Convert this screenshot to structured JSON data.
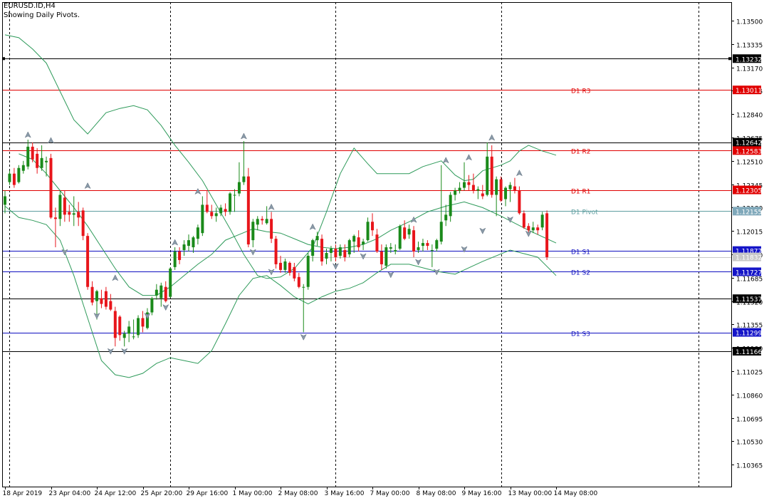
{
  "header": {
    "symbol_timeframe": "EURUSD.ID,H4",
    "indicator_note": "Showing Daily Pivots."
  },
  "colors": {
    "bull": "#1a8a1a",
    "bear": "#e8151b",
    "bollinger": "#2e9a5a",
    "resistance": "#e00000",
    "support": "#1010c0",
    "pivot": "#5f9ea0",
    "neutral_line": "#000000",
    "fractal": "#8a9aa8"
  },
  "chart_data": {
    "type": "candlestick",
    "symbol": "EURUSD.ID",
    "timeframe": "H4",
    "ylim": [
      1.1025,
      1.1365
    ],
    "y_ticks": [
      "1.13500",
      "1.13335",
      "1.13170",
      "1.13005",
      "1.12840",
      "1.12675",
      "1.12510",
      "1.12345",
      "1.12180",
      "1.12015",
      "1.11850",
      "1.11685",
      "1.11520",
      "1.11355",
      "1.11190",
      "1.11025",
      "1.10860",
      "1.10695",
      "1.10530",
      "1.10365"
    ],
    "x_labels": [
      {
        "bar": 0,
        "label": "18 Apr 2019"
      },
      {
        "bar": 10,
        "label": "23 Apr 04:00"
      },
      {
        "bar": 20,
        "label": "24 Apr 12:00"
      },
      {
        "bar": 30,
        "label": "25 Apr 20:00"
      },
      {
        "bar": 40,
        "label": "29 Apr 16:00"
      },
      {
        "bar": 50,
        "label": "1 May 00:00"
      },
      {
        "bar": 60,
        "label": "2 May 08:00"
      },
      {
        "bar": 70,
        "label": "3 May 16:00"
      },
      {
        "bar": 80,
        "label": "7 May 00:00"
      },
      {
        "bar": 90,
        "label": "8 May 08:00"
      },
      {
        "bar": 100,
        "label": "9 May 16:00"
      },
      {
        "bar": 110,
        "label": "13 May 00:00"
      },
      {
        "bar": 120,
        "label": "14 May 08:00"
      }
    ],
    "day_separators": [
      1,
      36,
      72,
      108,
      151
    ],
    "levels": [
      {
        "label": "",
        "value": 1.13232,
        "price": "1.13232",
        "kind": "neutral"
      },
      {
        "label": "D1 R3",
        "value": 1.13011,
        "price": "1.13011",
        "kind": "resistance"
      },
      {
        "label": "",
        "value": 1.12642,
        "price": "1.12642",
        "kind": "neutral"
      },
      {
        "label": "D1 R2",
        "value": 1.12583,
        "price": "1.12583",
        "kind": "resistance"
      },
      {
        "label": "D1 R1",
        "value": 1.12305,
        "price": "1.12305",
        "kind": "resistance"
      },
      {
        "label": "D1 Pivot",
        "value": 1.12155,
        "price": "1.12155",
        "kind": "pivot"
      },
      {
        "label": "D1 S1",
        "value": 1.11877,
        "price": "1.11877",
        "kind": "support"
      },
      {
        "label": "D1 S2",
        "value": 1.11727,
        "price": "1.11727",
        "kind": "support"
      },
      {
        "label": "",
        "value": 1.11537,
        "price": "1.11537",
        "kind": "neutral"
      },
      {
        "label": "D1 S3",
        "value": 1.11299,
        "price": "1.11299",
        "kind": "support"
      },
      {
        "label": "",
        "value": 1.11166,
        "price": "1.11166",
        "kind": "neutral"
      }
    ],
    "current_price": "1.11832",
    "current_value": 1.11832,
    "candles": [
      [
        1.122,
        1.123,
        1.1214,
        1.1226
      ],
      [
        1.1236,
        1.1244,
        1.1234,
        1.1242
      ],
      [
        1.1242,
        1.1246,
        1.1232,
        1.1234
      ],
      [
        1.1236,
        1.1248,
        1.1235,
        1.1246
      ],
      [
        1.1244,
        1.1251,
        1.1242,
        1.1248
      ],
      [
        1.1247,
        1.1266,
        1.1245,
        1.1261
      ],
      [
        1.1261,
        1.1264,
        1.125,
        1.1252
      ],
      [
        1.1256,
        1.126,
        1.1242,
        1.1246
      ],
      [
        1.1246,
        1.1262,
        1.1244,
        1.1253
      ],
      [
        1.125,
        1.1254,
        1.124,
        1.1251
      ],
      [
        1.1253,
        1.1256,
        1.121,
        1.1211
      ],
      [
        1.1211,
        1.1218,
        1.119,
        1.121
      ],
      [
        1.121,
        1.123,
        1.1205,
        1.1227
      ],
      [
        1.1225,
        1.123,
        1.1208,
        1.1213
      ],
      [
        1.1215,
        1.122,
        1.1208,
        1.1213
      ],
      [
        1.1213,
        1.1226,
        1.1205,
        1.1214
      ],
      [
        1.1215,
        1.1222,
        1.1205,
        1.1211
      ],
      [
        1.1216,
        1.1218,
        1.1195,
        1.1198
      ],
      [
        1.1198,
        1.12,
        1.116,
        1.1162
      ],
      [
        1.1162,
        1.1166,
        1.1149,
        1.1151
      ],
      [
        1.1152,
        1.116,
        1.1139,
        1.1159
      ],
      [
        1.1154,
        1.116,
        1.1147,
        1.115
      ],
      [
        1.1159,
        1.1162,
        1.1146,
        1.1148
      ],
      [
        1.1152,
        1.1157,
        1.1145,
        1.1146
      ],
      [
        1.1145,
        1.1148,
        1.112,
        1.1126
      ],
      [
        1.1141,
        1.1142,
        1.1124,
        1.1128
      ],
      [
        1.1126,
        1.1131,
        1.112,
        1.1129
      ],
      [
        1.1129,
        1.1138,
        1.1123,
        1.1134
      ],
      [
        1.1127,
        1.1139,
        1.1125,
        1.1127
      ],
      [
        1.1128,
        1.1142,
        1.1126,
        1.114
      ],
      [
        1.114,
        1.1145,
        1.113,
        1.1134
      ],
      [
        1.1133,
        1.1147,
        1.1132,
        1.1144
      ],
      [
        1.1144,
        1.1155,
        1.1142,
        1.1154
      ],
      [
        1.1156,
        1.1164,
        1.1153,
        1.116
      ],
      [
        1.1154,
        1.1165,
        1.1148,
        1.1163
      ],
      [
        1.1162,
        1.1166,
        1.1151,
        1.1152
      ],
      [
        1.1155,
        1.1176,
        1.1154,
        1.1175
      ],
      [
        1.1176,
        1.119,
        1.1174,
        1.1187
      ],
      [
        1.1187,
        1.119,
        1.1178,
        1.1181
      ],
      [
        1.1188,
        1.1195,
        1.1184,
        1.1192
      ],
      [
        1.1191,
        1.1199,
        1.1187,
        1.1195
      ],
      [
        1.119,
        1.1198,
        1.1186,
        1.1197
      ],
      [
        1.1196,
        1.1206,
        1.1192,
        1.1204
      ],
      [
        1.12,
        1.1226,
        1.1198,
        1.122
      ],
      [
        1.122,
        1.123,
        1.1214,
        1.1215
      ],
      [
        1.1215,
        1.122,
        1.121,
        1.1212
      ],
      [
        1.1212,
        1.1218,
        1.1208,
        1.1214
      ],
      [
        1.1214,
        1.122,
        1.1212,
        1.1218
      ],
      [
        1.1217,
        1.1221,
        1.1212,
        1.1215
      ],
      [
        1.1215,
        1.1229,
        1.1213,
        1.1228
      ],
      [
        1.1227,
        1.1231,
        1.1215,
        1.1227
      ],
      [
        1.1228,
        1.125,
        1.1226,
        1.1236
      ],
      [
        1.1236,
        1.1265,
        1.1234,
        1.124
      ],
      [
        1.124,
        1.1246,
        1.119,
        1.1192
      ],
      [
        1.1195,
        1.121,
        1.119,
        1.1208
      ],
      [
        1.1206,
        1.1212,
        1.1202,
        1.121
      ],
      [
        1.121,
        1.1212,
        1.1206,
        1.1209
      ],
      [
        1.1207,
        1.1219,
        1.1206,
        1.121
      ],
      [
        1.121,
        1.1215,
        1.1193,
        1.1196
      ],
      [
        1.1196,
        1.1198,
        1.1175,
        1.1178
      ],
      [
        1.1179,
        1.1184,
        1.1172,
        1.1174
      ],
      [
        1.1174,
        1.1182,
        1.1172,
        1.118
      ],
      [
        1.1179,
        1.118,
        1.117,
        1.1172
      ],
      [
        1.1176,
        1.1179,
        1.1166,
        1.1168
      ],
      [
        1.1169,
        1.1172,
        1.1161,
        1.1162
      ],
      [
        1.1162,
        1.1164,
        1.113,
        1.1162
      ],
      [
        1.1162,
        1.1186,
        1.116,
        1.1184
      ],
      [
        1.1184,
        1.1196,
        1.118,
        1.1195
      ],
      [
        1.1195,
        1.1201,
        1.1191,
        1.1198
      ],
      [
        1.1196,
        1.1199,
        1.1177,
        1.118
      ],
      [
        1.1182,
        1.1189,
        1.1178,
        1.1186
      ],
      [
        1.1186,
        1.1191,
        1.118,
        1.1189
      ],
      [
        1.1189,
        1.1192,
        1.118,
        1.1183
      ],
      [
        1.1184,
        1.1192,
        1.1182,
        1.119
      ],
      [
        1.1188,
        1.1192,
        1.118,
        1.1183
      ],
      [
        1.1185,
        1.1196,
        1.1183,
        1.1195
      ],
      [
        1.1194,
        1.1199,
        1.1186,
        1.1198
      ],
      [
        1.1197,
        1.1202,
        1.1187,
        1.119
      ],
      [
        1.1192,
        1.1196,
        1.1188,
        1.1194
      ],
      [
        1.1195,
        1.1211,
        1.1194,
        1.1208
      ],
      [
        1.1208,
        1.1214,
        1.1198,
        1.1202
      ],
      [
        1.1199,
        1.1203,
        1.1186,
        1.1187
      ],
      [
        1.1187,
        1.1192,
        1.1174,
        1.1178
      ],
      [
        1.1177,
        1.1192,
        1.1175,
        1.119
      ],
      [
        1.1189,
        1.1193,
        1.1186,
        1.119
      ],
      [
        1.1187,
        1.1192,
        1.1185,
        1.1188
      ],
      [
        1.1189,
        1.1206,
        1.1188,
        1.1205
      ],
      [
        1.1204,
        1.1209,
        1.1195,
        1.1196
      ],
      [
        1.1199,
        1.1206,
        1.1196,
        1.1203
      ],
      [
        1.1202,
        1.1205,
        1.1183,
        1.1187
      ],
      [
        1.1188,
        1.1194,
        1.1186,
        1.119
      ],
      [
        1.1191,
        1.1196,
        1.1187,
        1.1193
      ],
      [
        1.1193,
        1.1195,
        1.1188,
        1.1191
      ],
      [
        1.1188,
        1.1192,
        1.1176,
        1.1188
      ],
      [
        1.1189,
        1.1196,
        1.1187,
        1.1195
      ],
      [
        1.1194,
        1.1248,
        1.1192,
        1.1208
      ],
      [
        1.1209,
        1.122,
        1.1205,
        1.1213
      ],
      [
        1.1212,
        1.1229,
        1.1208,
        1.1227
      ],
      [
        1.1227,
        1.1232,
        1.1223,
        1.123
      ],
      [
        1.123,
        1.1236,
        1.1228,
        1.1232
      ],
      [
        1.1232,
        1.125,
        1.123,
        1.1236
      ],
      [
        1.1236,
        1.1241,
        1.123,
        1.1234
      ],
      [
        1.1234,
        1.1242,
        1.1228,
        1.123
      ],
      [
        1.123,
        1.1233,
        1.1224,
        1.1231
      ],
      [
        1.1228,
        1.1234,
        1.1224,
        1.1226
      ],
      [
        1.1227,
        1.1264,
        1.1226,
        1.1254
      ],
      [
        1.1254,
        1.1262,
        1.1225,
        1.1227
      ],
      [
        1.1227,
        1.124,
        1.1212,
        1.1238
      ],
      [
        1.1238,
        1.124,
        1.1222,
        1.1223
      ],
      [
        1.1224,
        1.1233,
        1.1219,
        1.1232
      ],
      [
        1.1231,
        1.1236,
        1.1222,
        1.1234
      ],
      [
        1.1233,
        1.1239,
        1.1228,
        1.123
      ],
      [
        1.123,
        1.1233,
        1.1213,
        1.1214
      ],
      [
        1.1214,
        1.1216,
        1.1203,
        1.1204
      ],
      [
        1.1205,
        1.1207,
        1.1199,
        1.1202
      ],
      [
        1.1202,
        1.1208,
        1.12,
        1.1204
      ],
      [
        1.1204,
        1.1206,
        1.1199,
        1.1202
      ],
      [
        1.1204,
        1.1215,
        1.1202,
        1.1213
      ],
      [
        1.1214,
        1.1216,
        1.1181,
        1.1183
      ]
    ],
    "fractals_up": [
      [
        5,
        1.1266
      ],
      [
        10,
        1.1262
      ],
      [
        18,
        1.123
      ],
      [
        24,
        1.1165
      ],
      [
        37,
        1.119
      ],
      [
        42,
        1.1226
      ],
      [
        52,
        1.1265
      ],
      [
        58,
        1.1215
      ],
      [
        67,
        1.1201
      ],
      [
        89,
        1.1206
      ],
      [
        96,
        1.1248
      ],
      [
        101,
        1.125
      ],
      [
        106,
        1.1264
      ],
      [
        112,
        1.1239
      ]
    ],
    "fractals_down": [
      [
        13,
        1.119
      ],
      [
        20,
        1.1145
      ],
      [
        23,
        1.112
      ],
      [
        26,
        1.112
      ],
      [
        31,
        1.1145
      ],
      [
        35,
        1.1151
      ],
      [
        54,
        1.119
      ],
      [
        58,
        1.1176
      ],
      [
        65,
        1.113
      ],
      [
        72,
        1.118
      ],
      [
        78,
        1.1187
      ],
      [
        84,
        1.1174
      ],
      [
        90,
        1.1183
      ],
      [
        94,
        1.1176
      ],
      [
        100,
        1.1192
      ],
      [
        104,
        1.1205
      ],
      [
        110,
        1.1213
      ],
      [
        114,
        1.1203
      ]
    ],
    "bollinger_upper": [
      1.134,
      1.1338,
      1.133,
      1.132,
      1.13,
      1.128,
      1.127,
      1.1285,
      1.1288,
      1.129,
      1.1287,
      1.1276,
      1.1262,
      1.125,
      1.1237,
      1.122,
      1.1203,
      1.1185,
      1.117,
      1.1168,
      1.1169,
      1.1175,
      1.119,
      1.1215,
      1.1242,
      1.126,
      1.1249,
      1.1242,
      1.1242,
      1.1242,
      1.1247,
      1.1251,
      1.1241,
      1.1237,
      1.1238,
      1.1244,
      1.1246,
      1.1248,
      1.1251,
      1.1258,
      1.1262,
      1.1258,
      1.1255
    ],
    "bollinger_upper_x": [
      0,
      3,
      6,
      9,
      12,
      15,
      18,
      22,
      25,
      28,
      31,
      34,
      37,
      40,
      43,
      46,
      49,
      52,
      55,
      57,
      60,
      63,
      67,
      70,
      73,
      76,
      79,
      81,
      84,
      88,
      91,
      95,
      98,
      100,
      102,
      104,
      106,
      108,
      110,
      112,
      114,
      117,
      120
    ],
    "bollinger_lower": [
      1.1219,
      1.1211,
      1.1209,
      1.1206,
      1.1195,
      1.117,
      1.114,
      1.111,
      1.11,
      1.1098,
      1.1101,
      1.1108,
      1.1112,
      1.111,
      1.1108,
      1.1117,
      1.1136,
      1.1156,
      1.1168,
      1.117,
      1.1163,
      1.1155,
      1.115,
      1.1155,
      1.1159,
      1.1161,
      1.1165,
      1.1172,
      1.1178,
      1.1178,
      1.1173,
      1.1171,
      1.118,
      1.1188,
      1.1183,
      1.117
    ],
    "bollinger_lower_x": [
      0,
      3,
      6,
      9,
      12,
      15,
      18,
      21,
      24,
      27,
      30,
      33,
      36,
      39,
      42,
      45,
      48,
      51,
      54,
      57,
      60,
      63,
      66,
      69,
      72,
      75,
      78,
      81,
      84,
      88,
      94,
      98,
      104,
      110,
      116,
      120
    ],
    "bollinger_mid": [
      1.1256,
      1.1252,
      1.1242,
      1.123,
      1.1218,
      1.1205,
      1.119,
      1.1175,
      1.1162,
      1.1156,
      1.1156,
      1.1162,
      1.117,
      1.1178,
      1.1185,
      1.1195,
      1.1199,
      1.1203,
      1.1201,
      1.12,
      1.1196,
      1.1192,
      1.119,
      1.1189,
      1.119,
      1.1192,
      1.1196,
      1.1202,
      1.1208,
      1.1215,
      1.1219,
      1.1222,
      1.1218,
      1.1212,
      1.1202,
      1.1193
    ],
    "bollinger_mid_x": [
      3,
      6,
      9,
      12,
      15,
      18,
      21,
      24,
      27,
      30,
      33,
      36,
      39,
      42,
      45,
      48,
      51,
      54,
      57,
      60,
      63,
      66,
      69,
      72,
      75,
      78,
      81,
      84,
      88,
      92,
      96,
      100,
      104,
      108,
      114,
      120
    ]
  }
}
